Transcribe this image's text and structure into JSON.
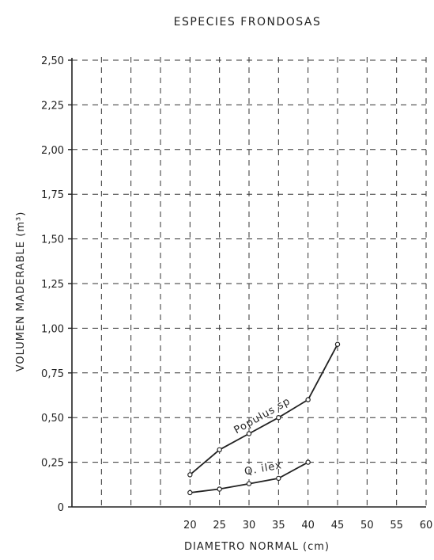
{
  "chart_data": {
    "type": "line",
    "title": "ESPECIES FRONDOSAS",
    "xlabel": "DIAMETRO NORMAL (cm)",
    "ylabel": "VOLUMEN MADERABLE (m³)",
    "xlim": [
      0,
      60
    ],
    "ylim": [
      0,
      2.5
    ],
    "x_ticks": [
      20,
      25,
      30,
      35,
      40,
      45,
      50,
      55,
      60
    ],
    "x_tick_labels": [
      "20",
      "25",
      "30",
      "35",
      "40",
      "45",
      "50",
      "55",
      "60"
    ],
    "y_ticks": [
      0,
      0.25,
      0.5,
      0.75,
      1.0,
      1.25,
      1.5,
      1.75,
      2.0,
      2.25,
      2.5
    ],
    "y_tick_labels": [
      "0",
      "0,25",
      "0,50",
      "0,75",
      "1,00",
      "1,25",
      "1,50",
      "1,75",
      "2,00",
      "2,25",
      "2,50"
    ],
    "grid": true,
    "series": [
      {
        "name": "Populus sp",
        "x": [
          20,
          25,
          30,
          35,
          40,
          45
        ],
        "y": [
          0.18,
          0.32,
          0.41,
          0.5,
          0.6,
          0.91
        ]
      },
      {
        "name": "Q. ilex",
        "x": [
          20,
          25,
          30,
          35,
          40
        ],
        "y": [
          0.08,
          0.1,
          0.13,
          0.16,
          0.25
        ]
      }
    ]
  }
}
